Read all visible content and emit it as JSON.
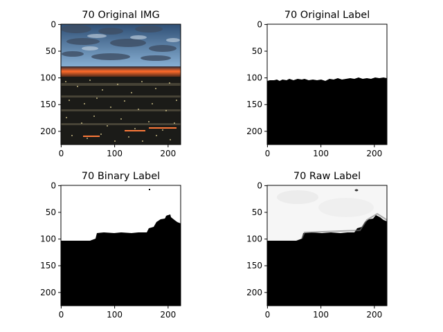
{
  "panels": [
    {
      "title": "70 Original IMG",
      "kind": "photo-sunset-city",
      "x_ticks": [
        "0",
        "100",
        "200"
      ],
      "y_ticks": [
        "0",
        "50",
        "100",
        "150",
        "200"
      ]
    },
    {
      "title": "70 Original Label",
      "kind": "mask-horizon",
      "x_ticks": [
        "0",
        "100",
        "200"
      ],
      "y_ticks": [
        "0",
        "50",
        "100",
        "150",
        "200"
      ]
    },
    {
      "title": "70 Binary Label",
      "kind": "mask-binary",
      "x_ticks": [
        "0",
        "100",
        "200"
      ],
      "y_ticks": [
        "0",
        "50",
        "100",
        "150",
        "200"
      ]
    },
    {
      "title": "70 Raw Label",
      "kind": "mask-raw",
      "x_ticks": [
        "0",
        "100",
        "200"
      ],
      "y_ticks": [
        "0",
        "50",
        "100",
        "150",
        "200"
      ]
    }
  ],
  "colors": {
    "sky_top": "#3a5f8a",
    "sky_mid": "#7fa6cc",
    "sunset": "#ff6a2a",
    "city": "#1a1a16",
    "mask_white": "#ffffff",
    "mask_black": "#000000"
  }
}
